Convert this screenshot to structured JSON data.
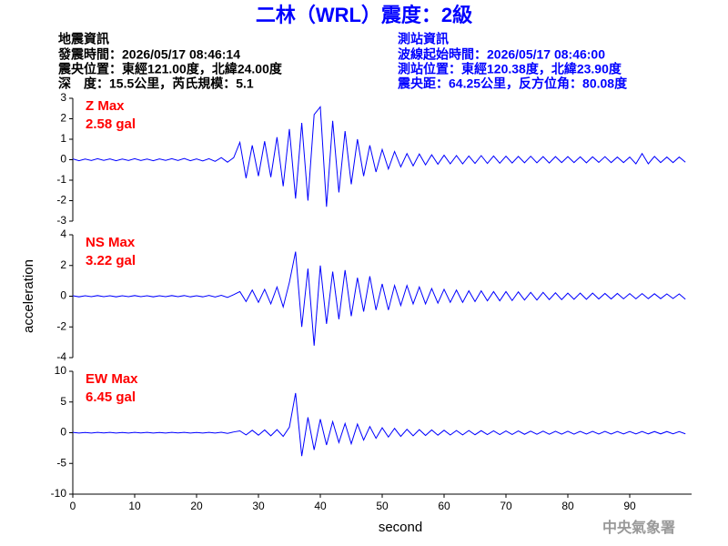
{
  "title": "二林（WRL）震度：2級",
  "header": {
    "left": [
      "地震資訊",
      "發震時間：2026/05/17 08:46:14",
      "震央位置：東經121.00度，北緯24.00度",
      "深　度：15.5公里，芮氏規模：5.1"
    ],
    "right": [
      "測站資訊",
      "波線起始時間：2026/05/17 08:46:00",
      "測站位置：東經120.38度，北緯23.90度",
      "震央距：64.25公里，反方位角：80.08度"
    ]
  },
  "watermark": "中央氣象署",
  "chart_data": [
    {
      "type": "line",
      "annotations": [
        "Z Max",
        "2.58 gal"
      ],
      "color": "#0000ff",
      "xlim": [
        0,
        100
      ],
      "ylim": [
        -3,
        3
      ],
      "yticks": [
        -3,
        -2,
        -1,
        0,
        1,
        2,
        3
      ],
      "x": [
        0,
        1,
        2,
        3,
        4,
        5,
        6,
        7,
        8,
        9,
        10,
        11,
        12,
        13,
        14,
        15,
        16,
        17,
        18,
        19,
        20,
        21,
        22,
        23,
        24,
        25,
        26,
        27,
        28,
        29,
        30,
        31,
        32,
        33,
        34,
        35,
        36,
        37,
        38,
        39,
        40,
        41,
        42,
        43,
        44,
        45,
        46,
        47,
        48,
        49,
        50,
        51,
        52,
        53,
        54,
        55,
        56,
        57,
        58,
        59,
        60,
        61,
        62,
        63,
        64,
        65,
        66,
        67,
        68,
        69,
        70,
        71,
        72,
        73,
        74,
        75,
        76,
        77,
        78,
        79,
        80,
        81,
        82,
        83,
        84,
        85,
        86,
        87,
        88,
        89,
        90,
        91,
        92,
        93,
        94,
        95,
        96,
        97,
        98,
        99
      ],
      "values": [
        0.04,
        -0.05,
        0.03,
        -0.04,
        0.05,
        -0.03,
        0.04,
        -0.05,
        0.03,
        -0.04,
        0.05,
        -0.04,
        0.03,
        -0.05,
        0.04,
        -0.03,
        0.05,
        -0.04,
        0.06,
        -0.05,
        0.04,
        -0.06,
        0.05,
        -0.08,
        0.1,
        -0.12,
        0.1,
        0.85,
        -0.9,
        0.7,
        -0.8,
        0.9,
        -0.85,
        1.1,
        -1.3,
        1.5,
        -1.9,
        1.8,
        -2.0,
        2.2,
        2.58,
        -2.3,
        1.9,
        -1.6,
        1.4,
        -1.2,
        1.0,
        -0.8,
        0.7,
        -0.6,
        0.5,
        -0.45,
        0.4,
        -0.35,
        0.3,
        -0.3,
        0.28,
        -0.25,
        0.24,
        -0.22,
        0.22,
        -0.2,
        0.2,
        -0.2,
        0.18,
        -0.18,
        0.2,
        -0.18,
        0.18,
        -0.17,
        0.17,
        -0.16,
        0.16,
        -0.15,
        0.17,
        -0.15,
        0.15,
        -0.16,
        0.15,
        -0.14,
        0.15,
        -0.14,
        0.14,
        -0.15,
        0.14,
        -0.13,
        0.15,
        -0.14,
        0.13,
        -0.14,
        0.13,
        -0.2,
        0.3,
        -0.2,
        0.16,
        -0.14,
        0.13,
        -0.14,
        0.13,
        -0.12
      ]
    },
    {
      "type": "line",
      "annotations": [
        "NS Max",
        "3.22 gal"
      ],
      "ylabel": "acceleration",
      "color": "#0000ff",
      "xlim": [
        0,
        100
      ],
      "ylim": [
        -4,
        4
      ],
      "yticks": [
        -4,
        -2,
        0,
        2,
        4
      ],
      "x": [
        0,
        1,
        2,
        3,
        4,
        5,
        6,
        7,
        8,
        9,
        10,
        11,
        12,
        13,
        14,
        15,
        16,
        17,
        18,
        19,
        20,
        21,
        22,
        23,
        24,
        25,
        26,
        27,
        28,
        29,
        30,
        31,
        32,
        33,
        34,
        35,
        36,
        37,
        38,
        39,
        40,
        41,
        42,
        43,
        44,
        45,
        46,
        47,
        48,
        49,
        50,
        51,
        52,
        53,
        54,
        55,
        56,
        57,
        58,
        59,
        60,
        61,
        62,
        63,
        64,
        65,
        66,
        67,
        68,
        69,
        70,
        71,
        72,
        73,
        74,
        75,
        76,
        77,
        78,
        79,
        80,
        81,
        82,
        83,
        84,
        85,
        86,
        87,
        88,
        89,
        90,
        91,
        92,
        93,
        94,
        95,
        96,
        97,
        98,
        99
      ],
      "values": [
        0.03,
        -0.04,
        0.03,
        -0.03,
        0.04,
        -0.03,
        0.03,
        -0.04,
        0.03,
        -0.03,
        0.04,
        -0.03,
        0.03,
        -0.04,
        0.03,
        -0.03,
        0.04,
        -0.03,
        0.04,
        -0.04,
        0.03,
        -0.04,
        0.05,
        -0.05,
        0.06,
        -0.08,
        0.1,
        0.3,
        -0.35,
        0.4,
        -0.4,
        0.45,
        -0.5,
        0.6,
        -0.7,
        0.9,
        2.9,
        -2.0,
        1.8,
        -3.22,
        2.0,
        -1.8,
        1.6,
        -1.5,
        1.7,
        -1.3,
        1.2,
        -1.0,
        1.3,
        -0.9,
        0.8,
        -0.9,
        0.7,
        -0.6,
        0.7,
        -0.5,
        0.6,
        -0.5,
        0.5,
        -0.45,
        0.45,
        -0.4,
        0.4,
        -0.4,
        0.35,
        -0.35,
        0.35,
        -0.3,
        0.3,
        -0.3,
        0.3,
        -0.28,
        0.28,
        -0.25,
        0.25,
        -0.25,
        0.25,
        -0.22,
        0.22,
        -0.22,
        0.2,
        -0.2,
        0.2,
        -0.2,
        0.2,
        -0.18,
        0.18,
        -0.18,
        0.18,
        -0.17,
        0.17,
        -0.17,
        0.17,
        -0.16,
        0.16,
        -0.16,
        0.15,
        -0.15,
        0.15,
        -0.2
      ]
    },
    {
      "type": "line",
      "annotations": [
        "EW Max",
        "6.45 gal"
      ],
      "xlabel": "second",
      "color": "#0000ff",
      "xlim": [
        0,
        100
      ],
      "ylim": [
        -10,
        10
      ],
      "yticks": [
        -10,
        -5,
        0,
        5,
        10
      ],
      "xticks": [
        0,
        10,
        20,
        30,
        40,
        50,
        60,
        70,
        80,
        90
      ],
      "x": [
        0,
        1,
        2,
        3,
        4,
        5,
        6,
        7,
        8,
        9,
        10,
        11,
        12,
        13,
        14,
        15,
        16,
        17,
        18,
        19,
        20,
        21,
        22,
        23,
        24,
        25,
        26,
        27,
        28,
        29,
        30,
        31,
        32,
        33,
        34,
        35,
        36,
        37,
        38,
        39,
        40,
        41,
        42,
        43,
        44,
        45,
        46,
        47,
        48,
        49,
        50,
        51,
        52,
        53,
        54,
        55,
        56,
        57,
        58,
        59,
        60,
        61,
        62,
        63,
        64,
        65,
        66,
        67,
        68,
        69,
        70,
        71,
        72,
        73,
        74,
        75,
        76,
        77,
        78,
        79,
        80,
        81,
        82,
        83,
        84,
        85,
        86,
        87,
        88,
        89,
        90,
        91,
        92,
        93,
        94,
        95,
        96,
        97,
        98,
        99
      ],
      "values": [
        0.05,
        -0.05,
        0.04,
        -0.05,
        0.05,
        -0.04,
        0.05,
        -0.05,
        0.04,
        -0.05,
        0.05,
        -0.04,
        0.05,
        -0.05,
        0.04,
        -0.05,
        0.05,
        -0.04,
        0.05,
        -0.05,
        0.04,
        -0.05,
        0.05,
        -0.06,
        0.08,
        -0.1,
        0.12,
        0.3,
        -0.35,
        0.4,
        -0.4,
        0.45,
        -0.5,
        0.5,
        -0.6,
        0.9,
        6.45,
        -3.8,
        2.5,
        -2.8,
        2.2,
        -2.0,
        1.8,
        -1.6,
        1.5,
        -1.8,
        1.4,
        -1.2,
        1.0,
        -0.9,
        0.8,
        -0.7,
        0.7,
        -0.6,
        0.55,
        -0.5,
        0.5,
        -0.45,
        0.45,
        -0.4,
        0.4,
        -0.38,
        0.36,
        -0.35,
        0.35,
        -0.33,
        0.33,
        -0.3,
        0.3,
        -0.3,
        0.28,
        -0.28,
        0.28,
        -0.26,
        0.26,
        -0.25,
        0.25,
        -0.25,
        0.24,
        -0.24,
        0.23,
        -0.23,
        0.22,
        -0.22,
        0.22,
        -0.21,
        0.21,
        -0.21,
        0.2,
        -0.2,
        0.2,
        -0.2,
        0.2,
        -0.19,
        0.19,
        -0.19,
        0.19,
        -0.18,
        0.18,
        -0.18
      ]
    }
  ]
}
